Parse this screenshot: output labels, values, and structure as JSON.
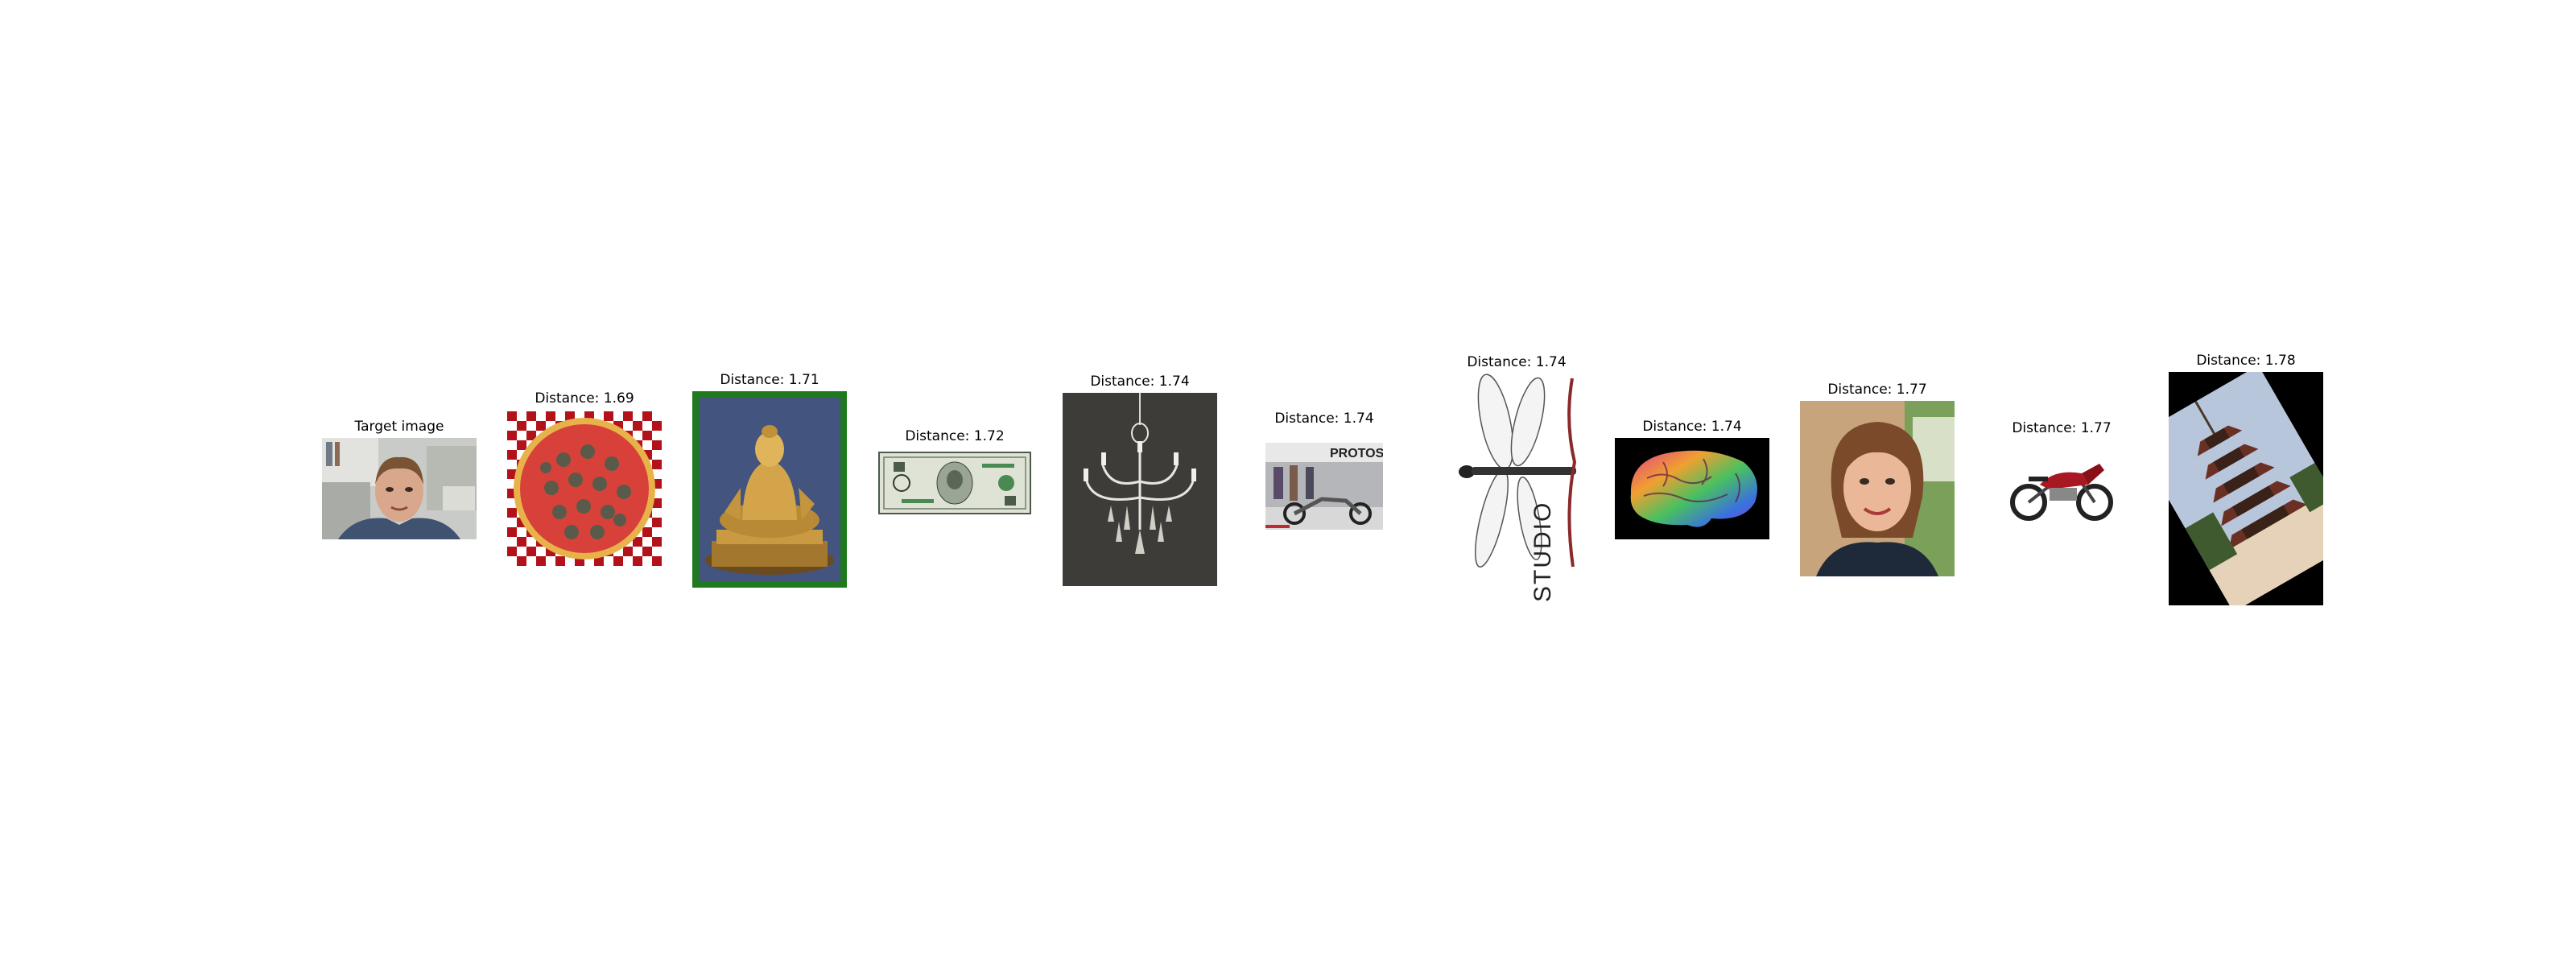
{
  "panels": [
    {
      "id": "target",
      "caption": "Target image",
      "subject": "man-portrait-office"
    },
    {
      "id": "r1",
      "caption": "Distance: 1.69",
      "subject": "pizza-on-checkered-cloth"
    },
    {
      "id": "r2",
      "caption": "Distance: 1.71",
      "subject": "golden-buddha-statue"
    },
    {
      "id": "r3",
      "caption": "Distance: 1.72",
      "subject": "two-dollar-bill"
    },
    {
      "id": "r4",
      "caption": "Distance: 1.74",
      "subject": "crystal-chandelier"
    },
    {
      "id": "r5",
      "caption": "Distance: 1.74",
      "subject": "motorcycle-show",
      "text": "PROTOS"
    },
    {
      "id": "r6",
      "caption": "Distance: 1.74",
      "subject": "dragonfly-studio-logo",
      "text": "STUDIO"
    },
    {
      "id": "r7",
      "caption": "Distance: 1.74",
      "subject": "colorful-brain"
    },
    {
      "id": "r8",
      "caption": "Distance: 1.77",
      "subject": "woman-portrait"
    },
    {
      "id": "r9",
      "caption": "Distance: 1.77",
      "subject": "red-motorcycle"
    },
    {
      "id": "r10",
      "caption": "Distance: 1.78",
      "subject": "tilted-pagoda"
    }
  ]
}
